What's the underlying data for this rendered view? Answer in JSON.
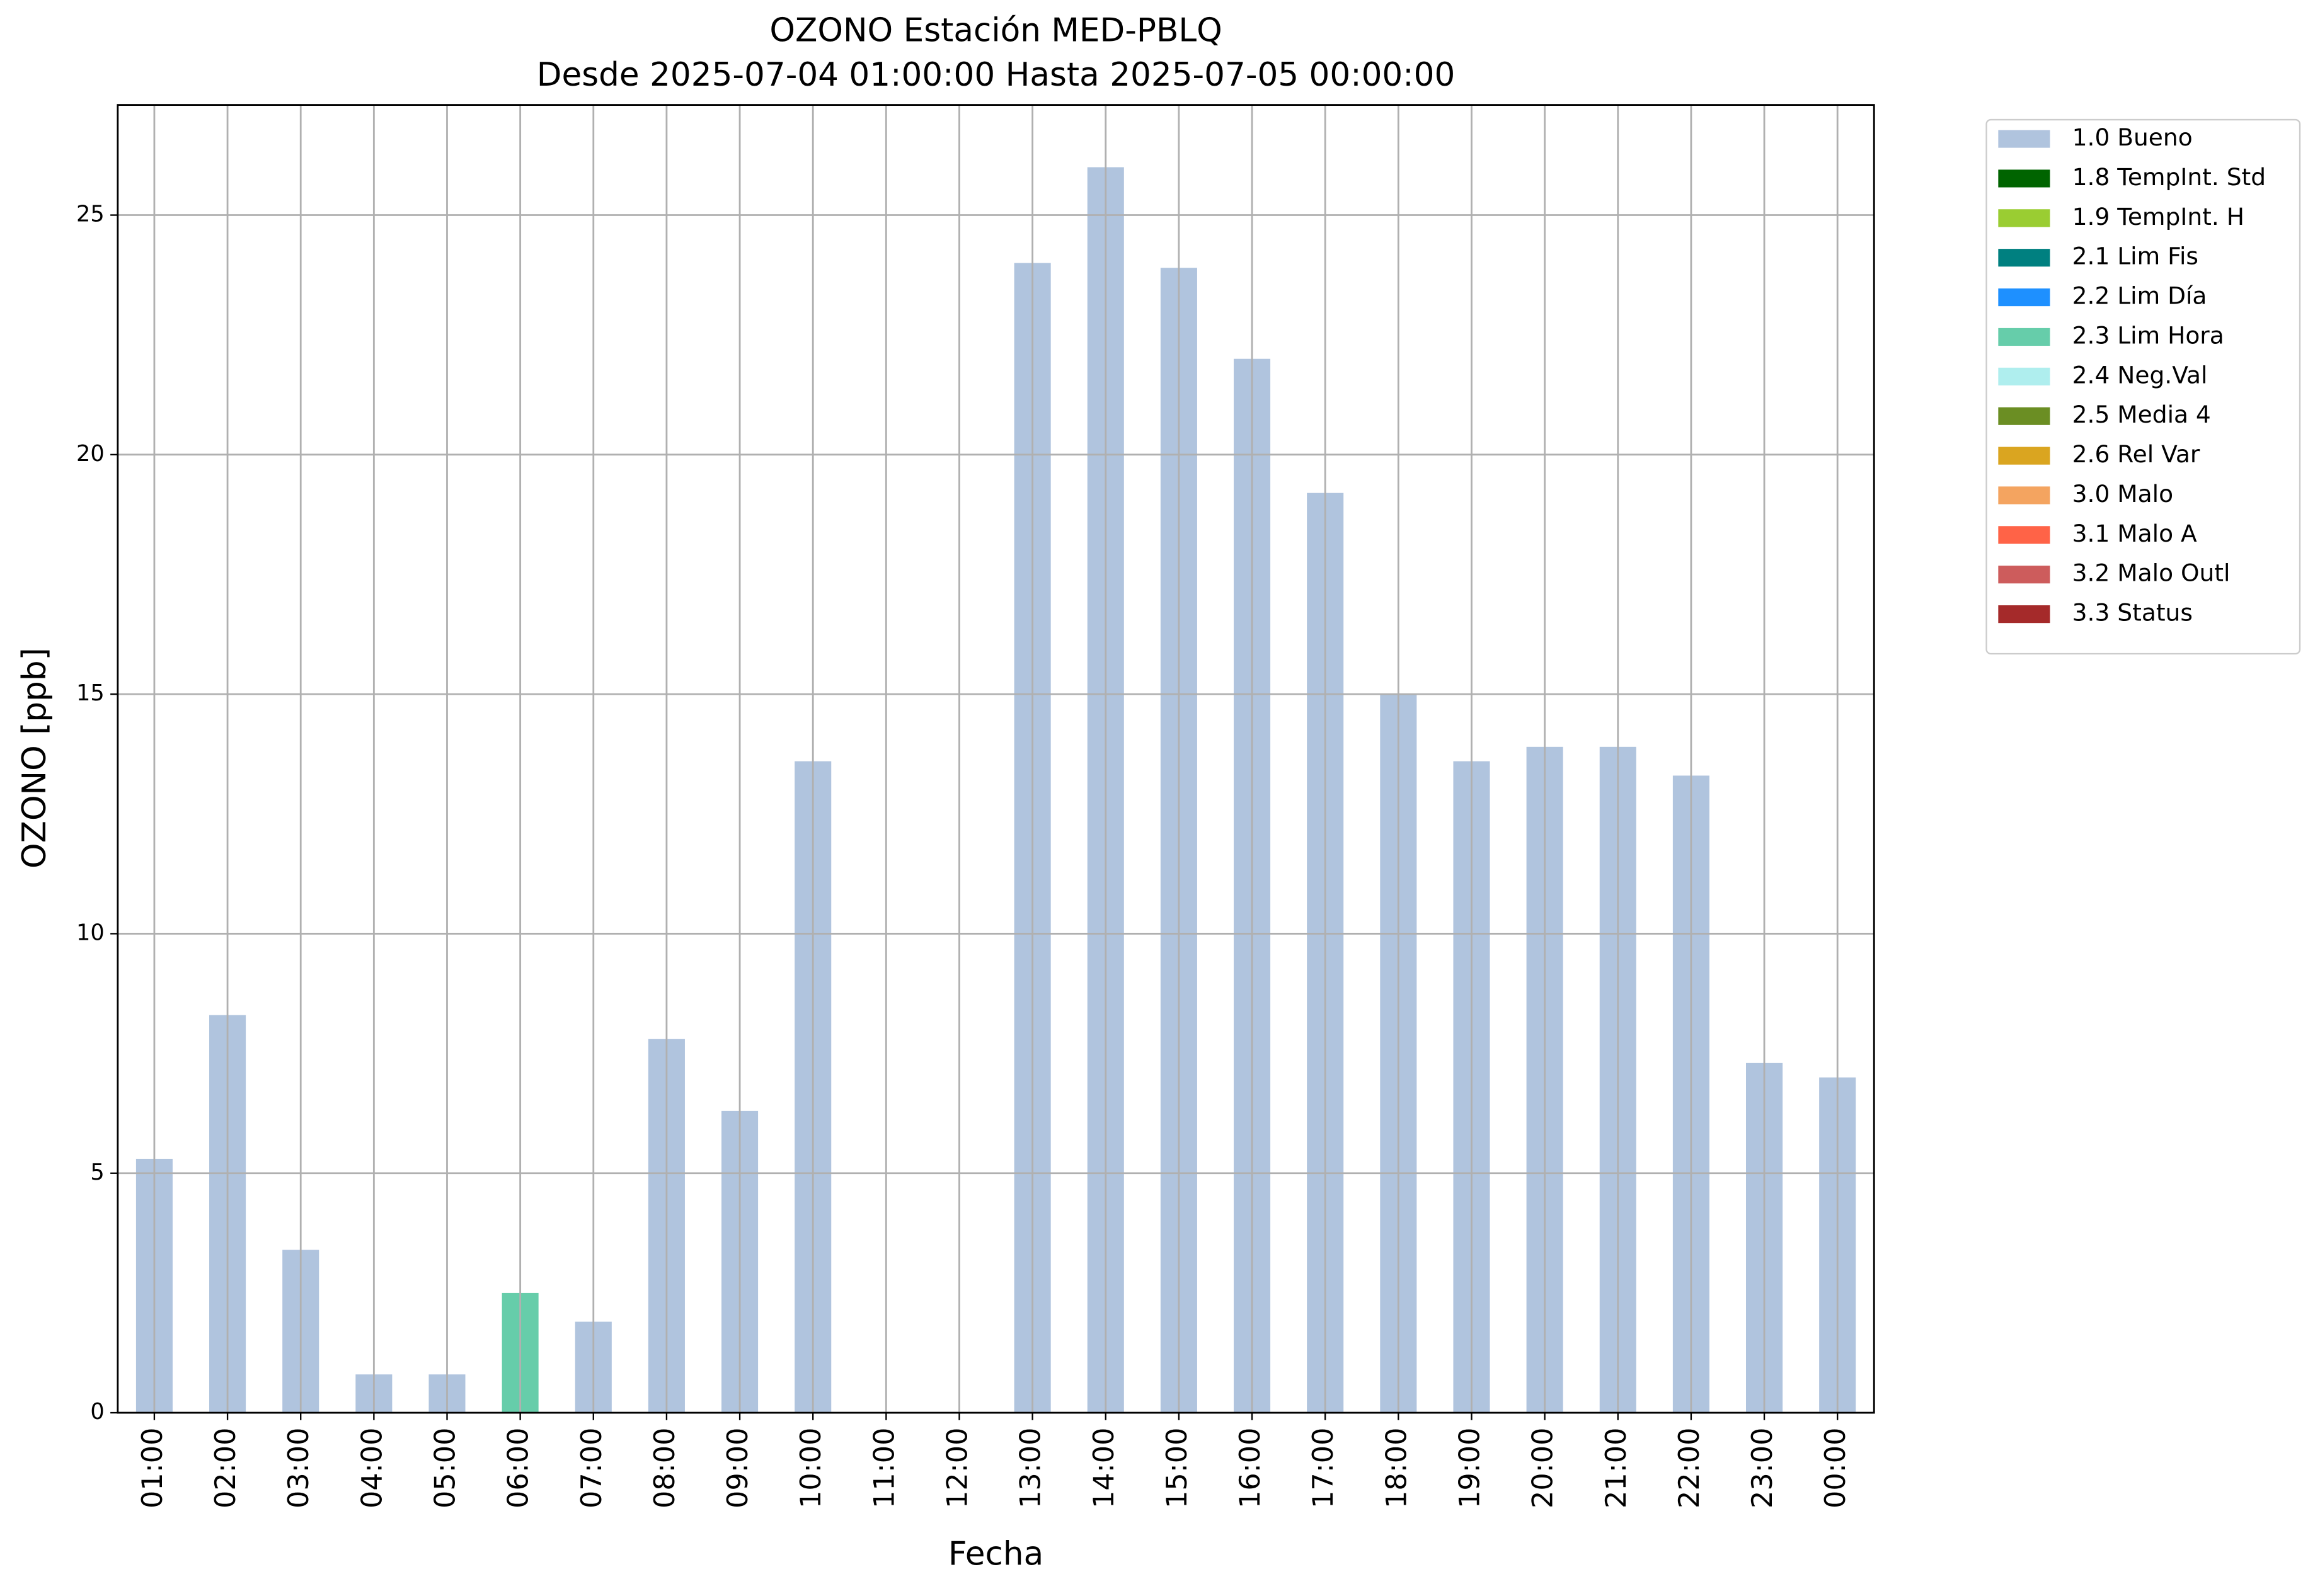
{
  "chart_data": {
    "type": "stacked_bar",
    "title": "OZONO Estación MED-PBLQ",
    "subtitle": "Desde 2025-07-04 01:00:00 Hasta 2025-07-05 00:00:00",
    "x_label": "Fecha",
    "y_label": "OZONO [ppb]",
    "categories": [
      "01:00",
      "02:00",
      "03:00",
      "04:00",
      "05:00",
      "06:00",
      "07:00",
      "08:00",
      "09:00",
      "10:00",
      "11:00",
      "12:00",
      "13:00",
      "14:00",
      "15:00",
      "16:00",
      "17:00",
      "18:00",
      "19:00",
      "20:00",
      "21:00",
      "22:00",
      "23:00",
      "00:00"
    ],
    "ylim": [
      0,
      27.3
    ],
    "yticks": [
      0,
      5,
      10,
      15,
      20,
      25
    ],
    "grid": true,
    "legend": "outside-right",
    "series": [
      {
        "name": "1.0 Bueno",
        "color": "#b0c4de",
        "values": [
          5.3,
          8.3,
          3.4,
          0.8,
          0.8,
          null,
          1.9,
          7.8,
          6.3,
          13.6,
          null,
          null,
          24.0,
          26.0,
          23.9,
          22.0,
          19.2,
          15.0,
          13.6,
          13.9,
          13.9,
          13.3,
          7.3,
          7.0
        ]
      },
      {
        "name": "1.8 TempInt. Std",
        "color": "#006400",
        "values": [
          null,
          null,
          null,
          null,
          null,
          null,
          null,
          null,
          null,
          null,
          null,
          null,
          null,
          null,
          null,
          null,
          null,
          null,
          null,
          null,
          null,
          null,
          null,
          null
        ]
      },
      {
        "name": "1.9 TempInt. H",
        "color": "#9acd32",
        "values": [
          null,
          null,
          null,
          null,
          null,
          null,
          null,
          null,
          null,
          null,
          null,
          null,
          null,
          null,
          null,
          null,
          null,
          null,
          null,
          null,
          null,
          null,
          null,
          null
        ]
      },
      {
        "name": "2.1 Lim Fis",
        "color": "#008080",
        "values": [
          null,
          null,
          null,
          null,
          null,
          null,
          null,
          null,
          null,
          null,
          null,
          null,
          null,
          null,
          null,
          null,
          null,
          null,
          null,
          null,
          null,
          null,
          null,
          null
        ]
      },
      {
        "name": "2.2 Lim Día",
        "color": "#1e90ff",
        "values": [
          null,
          null,
          null,
          null,
          null,
          null,
          null,
          null,
          null,
          null,
          null,
          null,
          null,
          null,
          null,
          null,
          null,
          null,
          null,
          null,
          null,
          null,
          null,
          null
        ]
      },
      {
        "name": "2.3 Lim Hora",
        "color": "#66cdaa",
        "values": [
          null,
          null,
          null,
          null,
          null,
          2.5,
          null,
          null,
          null,
          null,
          null,
          null,
          null,
          null,
          null,
          null,
          null,
          null,
          null,
          null,
          null,
          null,
          null,
          null
        ]
      },
      {
        "name": "2.4 Neg.Val",
        "color": "#afeeee",
        "values": [
          null,
          null,
          null,
          null,
          null,
          null,
          null,
          null,
          null,
          null,
          null,
          null,
          null,
          null,
          null,
          null,
          null,
          null,
          null,
          null,
          null,
          null,
          null,
          null
        ]
      },
      {
        "name": "2.5 Media 4",
        "color": "#6b8e23",
        "values": [
          null,
          null,
          null,
          null,
          null,
          null,
          null,
          null,
          null,
          null,
          null,
          null,
          null,
          null,
          null,
          null,
          null,
          null,
          null,
          null,
          null,
          null,
          null,
          null
        ]
      },
      {
        "name": "2.6 Rel Var",
        "color": "#daa520",
        "values": [
          null,
          null,
          null,
          null,
          null,
          null,
          null,
          null,
          null,
          null,
          null,
          null,
          null,
          null,
          null,
          null,
          null,
          null,
          null,
          null,
          null,
          null,
          null,
          null
        ]
      },
      {
        "name": "3.0 Malo",
        "color": "#f4a460",
        "values": [
          null,
          null,
          null,
          null,
          null,
          null,
          null,
          null,
          null,
          null,
          null,
          null,
          null,
          null,
          null,
          null,
          null,
          null,
          null,
          null,
          null,
          null,
          null,
          null
        ]
      },
      {
        "name": "3.1 Malo A",
        "color": "#ff6347",
        "values": [
          null,
          null,
          null,
          null,
          null,
          null,
          null,
          null,
          null,
          null,
          null,
          null,
          null,
          null,
          null,
          null,
          null,
          null,
          null,
          null,
          null,
          null,
          null,
          null
        ]
      },
      {
        "name": "3.2 Malo Outl",
        "color": "#cd5c5c",
        "values": [
          null,
          null,
          null,
          null,
          null,
          null,
          null,
          null,
          null,
          null,
          null,
          null,
          null,
          null,
          null,
          null,
          null,
          null,
          null,
          null,
          null,
          null,
          null,
          null
        ]
      },
      {
        "name": "3.3 Status",
        "color": "#a52a2a",
        "values": [
          null,
          null,
          null,
          null,
          null,
          null,
          null,
          null,
          null,
          null,
          null,
          null,
          null,
          null,
          null,
          null,
          null,
          null,
          null,
          null,
          null,
          null,
          null,
          null
        ]
      }
    ]
  }
}
